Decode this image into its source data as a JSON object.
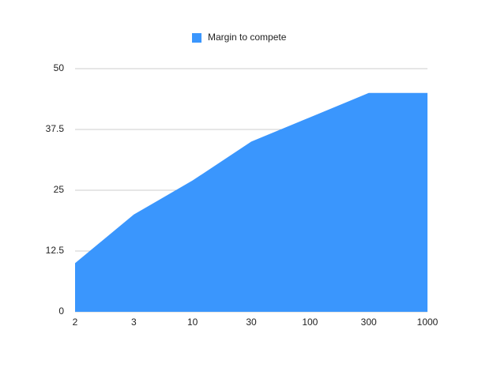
{
  "chart_data": {
    "type": "area",
    "categories": [
      "2",
      "3",
      "10",
      "30",
      "100",
      "300",
      "1000"
    ],
    "series": [
      {
        "name": "Margin to compete",
        "color": "#3a96fd",
        "values": [
          10,
          20,
          27,
          35,
          40,
          45,
          45
        ]
      }
    ],
    "ylim": [
      0,
      50
    ],
    "yticks": [
      0,
      12.5,
      25,
      37.5,
      50
    ],
    "grid": true,
    "legend": "top"
  }
}
